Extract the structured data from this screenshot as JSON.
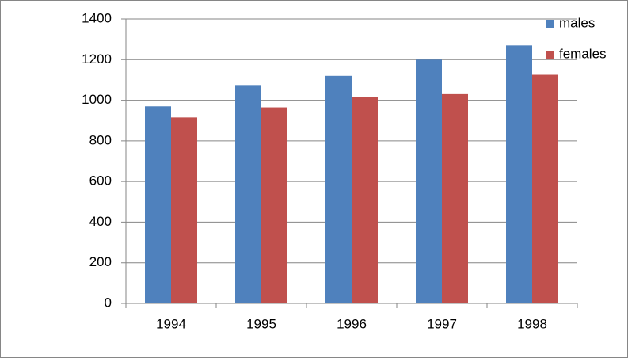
{
  "chart_data": {
    "type": "bar",
    "categories": [
      "1994",
      "1995",
      "1996",
      "1997",
      "1998"
    ],
    "series": [
      {
        "name": "males",
        "color": "#4f81bd",
        "values": [
          970,
          1075,
          1120,
          1200,
          1270
        ]
      },
      {
        "name": "females",
        "color": "#c0504d",
        "values": [
          915,
          965,
          1015,
          1030,
          1125
        ]
      }
    ],
    "ylim": [
      0,
      1400
    ],
    "yticks": [
      0,
      200,
      400,
      600,
      800,
      1000,
      1200,
      1400
    ],
    "grid": true,
    "legend": "top-right"
  }
}
